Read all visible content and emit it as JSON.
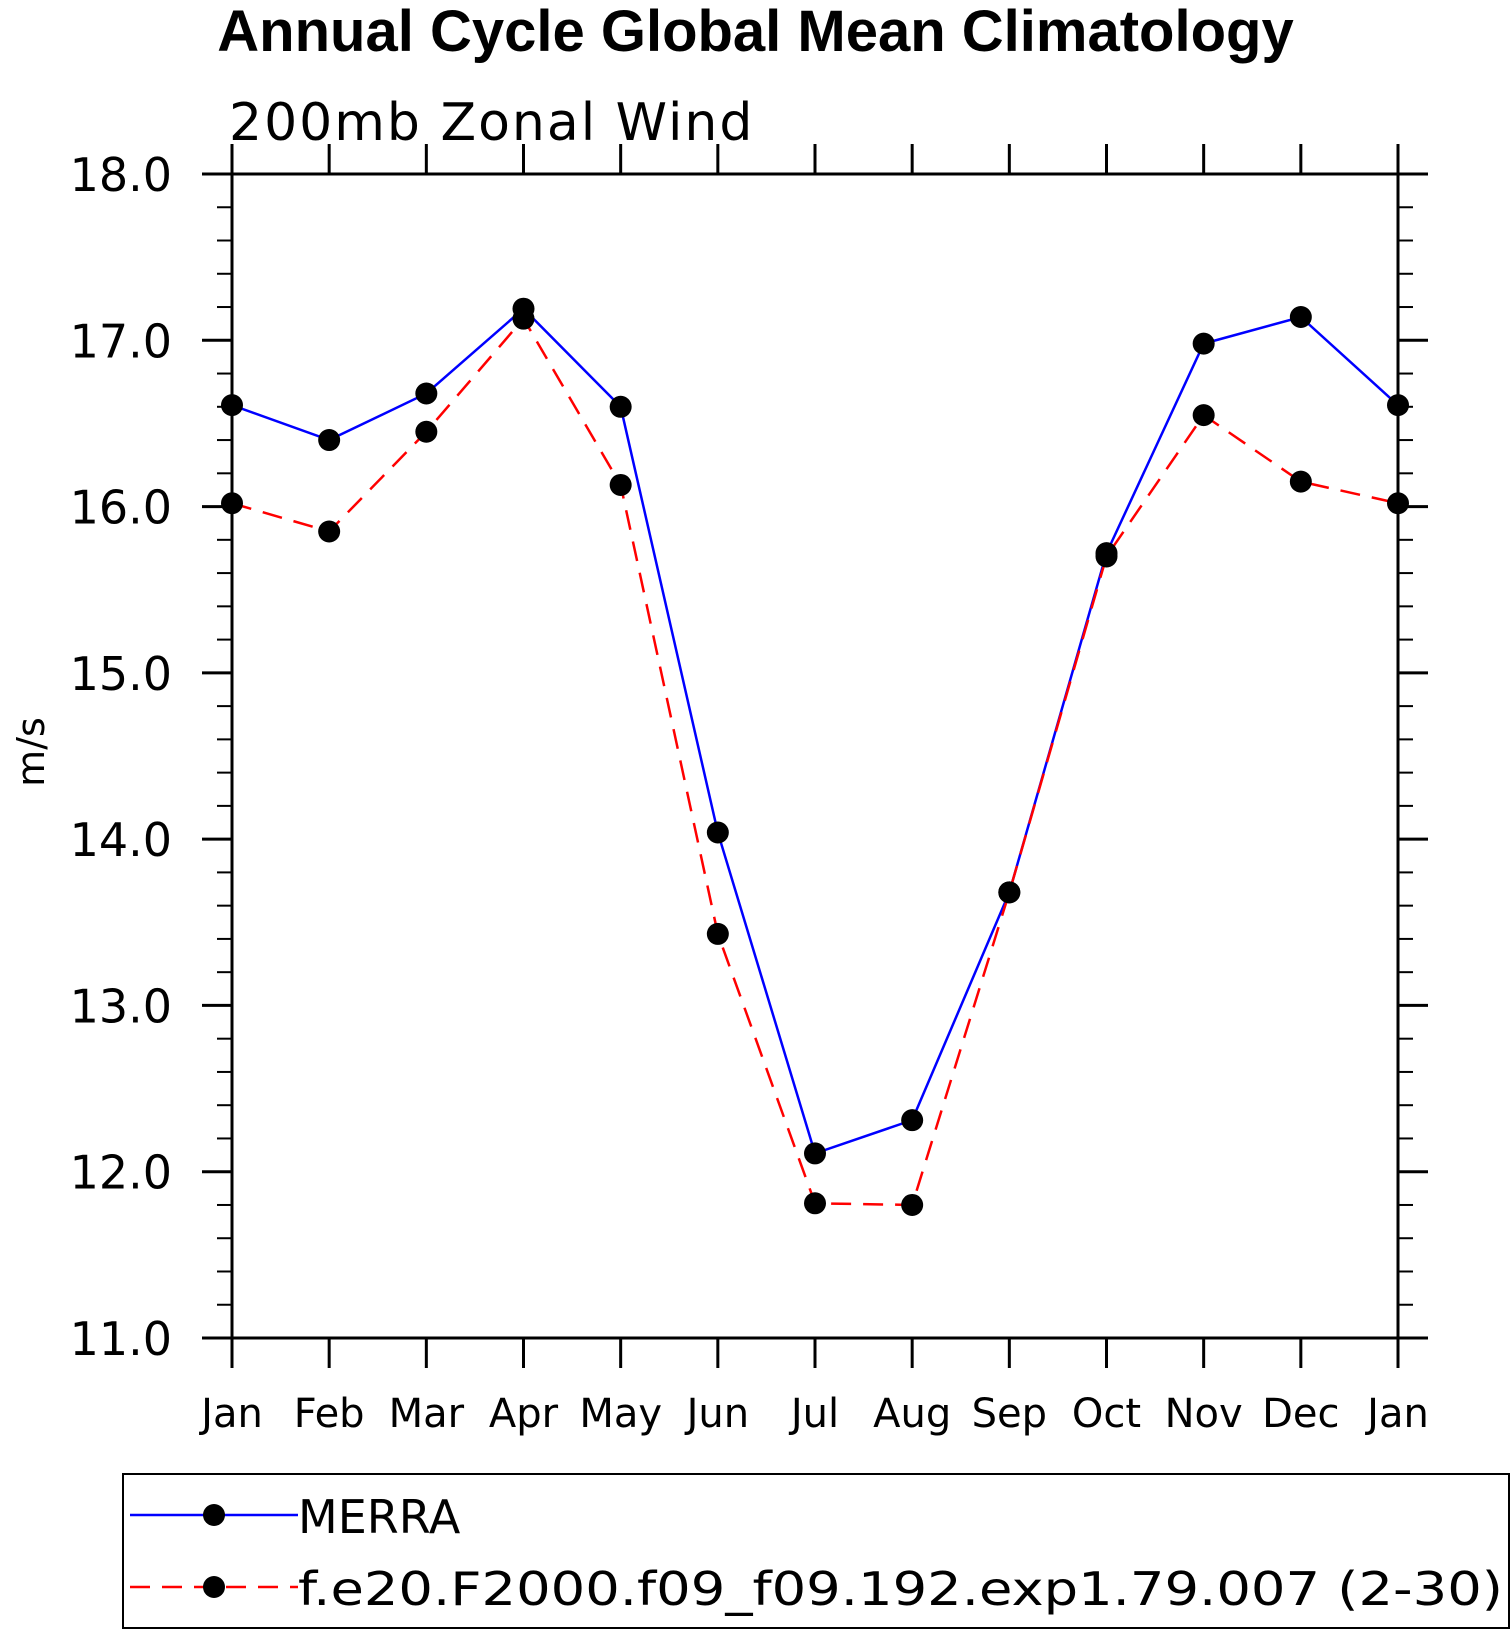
{
  "chart_data": {
    "type": "line",
    "title": "Annual Cycle Global Mean Climatology",
    "subtitle": "200mb Zonal Wind",
    "xlabel": "",
    "ylabel": "m/s",
    "categories": [
      "Jan",
      "Feb",
      "Mar",
      "Apr",
      "May",
      "Jun",
      "Jul",
      "Aug",
      "Sep",
      "Oct",
      "Nov",
      "Dec",
      "Jan"
    ],
    "ylim": [
      11.0,
      18.0
    ],
    "yticks": [
      "11.0",
      "12.0",
      "13.0",
      "14.0",
      "15.0",
      "16.0",
      "17.0",
      "18.0"
    ],
    "grid": false,
    "legend_position": "bottom",
    "series": [
      {
        "name": "MERRA",
        "color": "#0000ff",
        "line_style": "solid",
        "marker": "filled-circle",
        "values": [
          16.61,
          16.4,
          16.68,
          17.19,
          16.6,
          14.04,
          12.11,
          12.31,
          13.68,
          15.72,
          16.98,
          17.14,
          16.61
        ]
      },
      {
        "name": "f.e20.F2000.f09_f09.192.exp1.79.007 (2-30)",
        "color": "#ff0000",
        "line_style": "dashed",
        "marker": "filled-circle",
        "values": [
          16.02,
          15.85,
          16.45,
          17.13,
          16.13,
          13.43,
          11.81,
          11.8,
          13.68,
          15.7,
          16.55,
          16.15,
          16.02
        ]
      }
    ]
  }
}
